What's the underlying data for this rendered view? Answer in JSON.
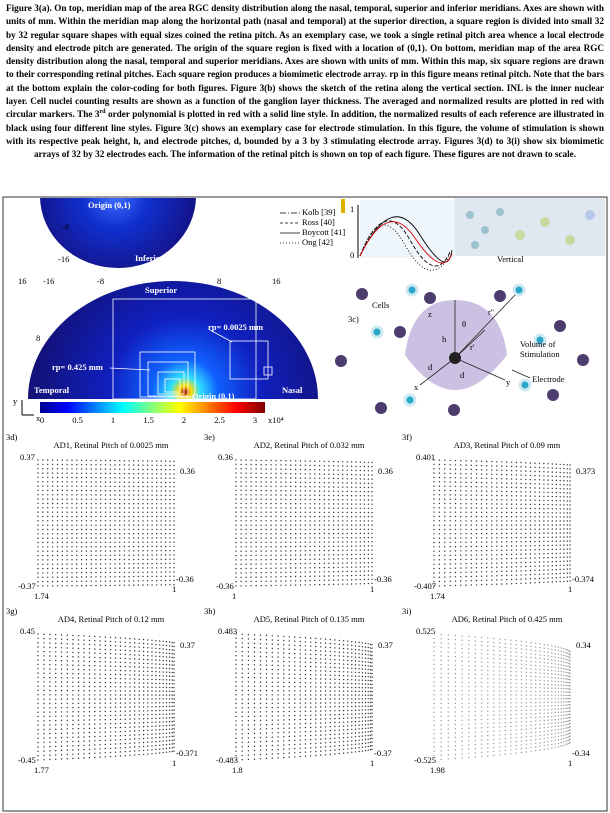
{
  "caption": {
    "part1": "Figure 3(a). On top, meridian map of the area RGC density distribution along the nasal, temporal, superior and inferior meridians. Axes are shown with units of mm. Within the meridian map along the horizontal path (nasal and temporal) at the superior direction, a square region is divided into small 32 by 32 regular square shapes with equal sizes coined the retina pitch. As an exemplary case, we took a single retinal pitch area whence a local electrode density and electrode pitch are generated. The origin of the square region is fixed with a location of (0,1). On bottom, meridian map of the area RGC density distribution along the nasal, temporal and superior meridians. Axes are shown with units of mm. Within this map, six square regions are drawn to their corresponding retinal pitches. Each square region produces a biomimetic electrode array. rp in this figure means retinal pitch. Note that the bars at the bottom explain the color-coding for both figures. Figure 3(b) shows the sketch of the retina along the vertical section. INL is the inner nuclear layer. Cell nuclei counting results are shown as a function of the ganglion layer thickness. The averaged and normalized results are plotted in red with circular markers. The 3",
    "sup": "rd",
    "part2": " order polynomial is plotted in red with a solid line style. In addition, the normalized results of each reference are illustrated in black using four different line styles. Figure 3(c) shows an exemplary case for electrode stimulation. In this figure, the volume of stimulation is shown with its respective peak height, h, and electrode pitches, d, bounded by a 3 by 3 stimulating electrode array. Figures 3(d) to 3(i) show six biomimetic arrays of 32 by 32 electrodes each. The information of the retinal pitch is shown on top of each figure. These figures are not drawn to scale."
  },
  "map": {
    "inferior": {
      "origin": "Origin (0,1)",
      "tick_a": "-8",
      "tick_b": "-16",
      "label": "Inferior"
    },
    "top_ticks": [
      "16",
      "-16",
      "-8",
      "8",
      "16"
    ],
    "left_tick": "8",
    "superior": "Superior",
    "rp_small": "rp= 0.0025 mm",
    "rp_large": "rp= 0.425 mm",
    "temporal": "Temporal",
    "nasal": "Nasal",
    "origin": "Origin (0,1)",
    "y_axis": "y",
    "x_axis": "x",
    "colorbar": [
      "0",
      "0.5",
      "1",
      "1.5",
      "2",
      "2.5",
      "3"
    ],
    "colorbar_unit": "x10⁴"
  },
  "profile": {
    "legend": [
      "Kolb [39]",
      "Ross [40]",
      "Boycott [41]",
      "Ong [42]"
    ],
    "y_top": "1",
    "y_bottom": "0",
    "vertical": "Vertical"
  },
  "stimulation": {
    "label": "3c)",
    "cells": "Cells",
    "volume": "Volume of Stimulation",
    "electrode": "Electrode",
    "h": "h",
    "d": "d",
    "d2": "d",
    "r1": "r'",
    "r2": "r''",
    "theta": "θ",
    "x": "x",
    "y": "y",
    "z": "z"
  },
  "panels": [
    {
      "label": "3d)",
      "title": "AD1, Retinal Pitch of 0.0025 mm",
      "top_left": "0.37",
      "bottom_left": "-0.37",
      "x_left": "1.74",
      "top_right": "0.36",
      "bottom_right": "-0.36",
      "x_right": "1"
    },
    {
      "label": "3e)",
      "title": "AD2, Retinal Pitch of 0.032 mm",
      "top_left": "0.36",
      "bottom_left": "-0.36",
      "x_left": "1",
      "top_right": "0.36",
      "bottom_right": "-0.36",
      "x_right": "1"
    },
    {
      "label": "3f)",
      "title": "AD3, Retinal Pitch of 0.09 mm",
      "top_left": "0.401",
      "bottom_left": "-0.407",
      "x_left": "1.74",
      "top_right": "0.373",
      "bottom_right": "-0.374",
      "x_right": "1"
    },
    {
      "label": "3g)",
      "title": "AD4, Retinal Pitch of 0.12 mm",
      "top_left": "0.45",
      "bottom_left": "-0.45",
      "x_left": "1.77",
      "top_right": "0.37",
      "bottom_right": "-0.371",
      "x_right": "1"
    },
    {
      "label": "3h)",
      "title": "AD5, Retinal Pitch of 0.135 mm",
      "top_left": "0.483",
      "bottom_left": "-0.483",
      "x_left": "1.8",
      "top_right": "0.37",
      "bottom_right": "-0.37",
      "x_right": "1"
    },
    {
      "label": "3i)",
      "title": "AD6, Retinal Pitch of 0.425 mm",
      "top_left": "0.525",
      "bottom_left": "-0.525",
      "x_left": "1.98",
      "top_right": "0.34",
      "bottom_right": "-0.34",
      "x_right": "1"
    }
  ]
}
